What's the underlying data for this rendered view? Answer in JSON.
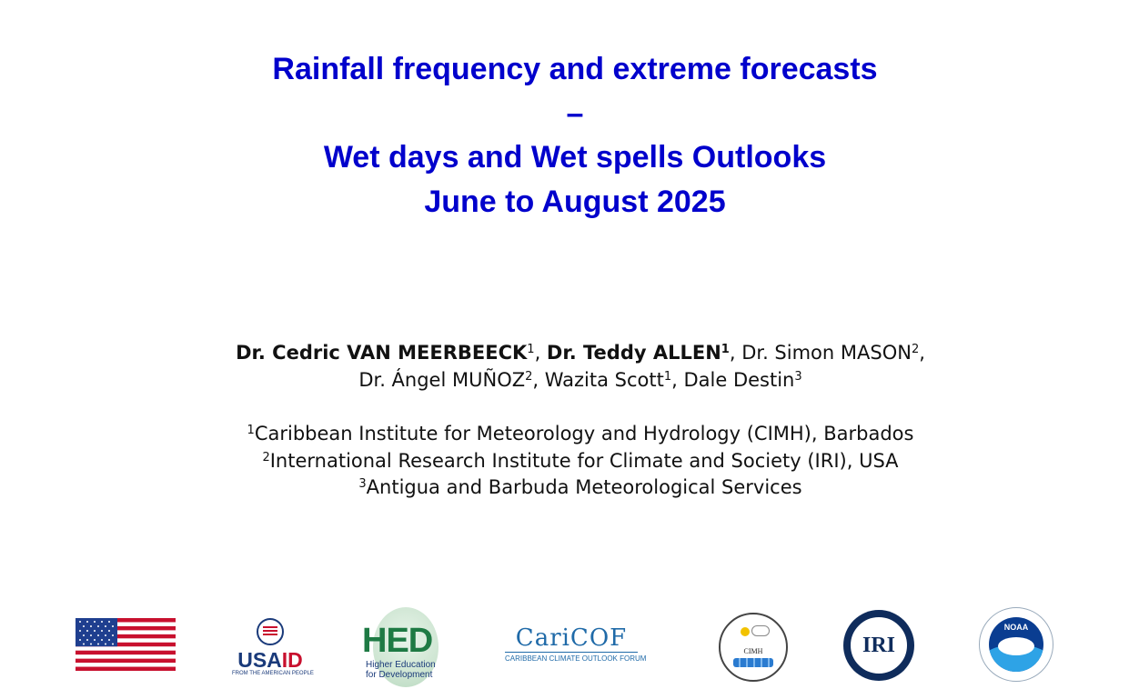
{
  "title": {
    "line1": "Rainfall frequency and extreme forecasts",
    "line2": "–",
    "line3": "Wet days and Wet spells Outlooks",
    "line4": "June to August 2025"
  },
  "authors": {
    "a1_name": "Dr. Cedric VAN MEERBEECK",
    "a1_sup": "1",
    "sep1": ", ",
    "a2_name": "Dr. Teddy ALLEN",
    "a2_sup": "1",
    "a3": ", Dr. Simon MASON",
    "a3_sup": "2",
    "a3_tail": ",",
    "a4": "Dr. Ángel MUÑOZ",
    "a4_sup": "2",
    "a5": ", Wazita Scott",
    "a5_sup": "1",
    "a6": ", Dale Destin",
    "a6_sup": "3"
  },
  "affiliations": [
    {
      "sup": "1",
      "text": "Caribbean Institute for Meteorology and Hydrology (CIMH), Barbados"
    },
    {
      "sup": "2",
      "text": "International Research Institute for Climate and Society (IRI), USA"
    },
    {
      "sup": "3",
      "text": "Antigua and Barbuda Meteorological Services"
    }
  ],
  "logos": {
    "usaid_name_a": "USA",
    "usaid_name_b": "ID",
    "usaid_tag": "FROM THE AMERICAN PEOPLE",
    "hed_big": "HED",
    "hed_small1": "Higher Education",
    "hed_small2": "for Development",
    "caricof_name": "CariCOF",
    "caricof_tag": "CARIBBEAN CLIMATE OUTLOOK FORUM",
    "cimh_label": "CIMH",
    "iri_label": "IRI",
    "noaa_label": "NOAA"
  },
  "colors": {
    "title": "#0000cc",
    "text": "#111111"
  }
}
